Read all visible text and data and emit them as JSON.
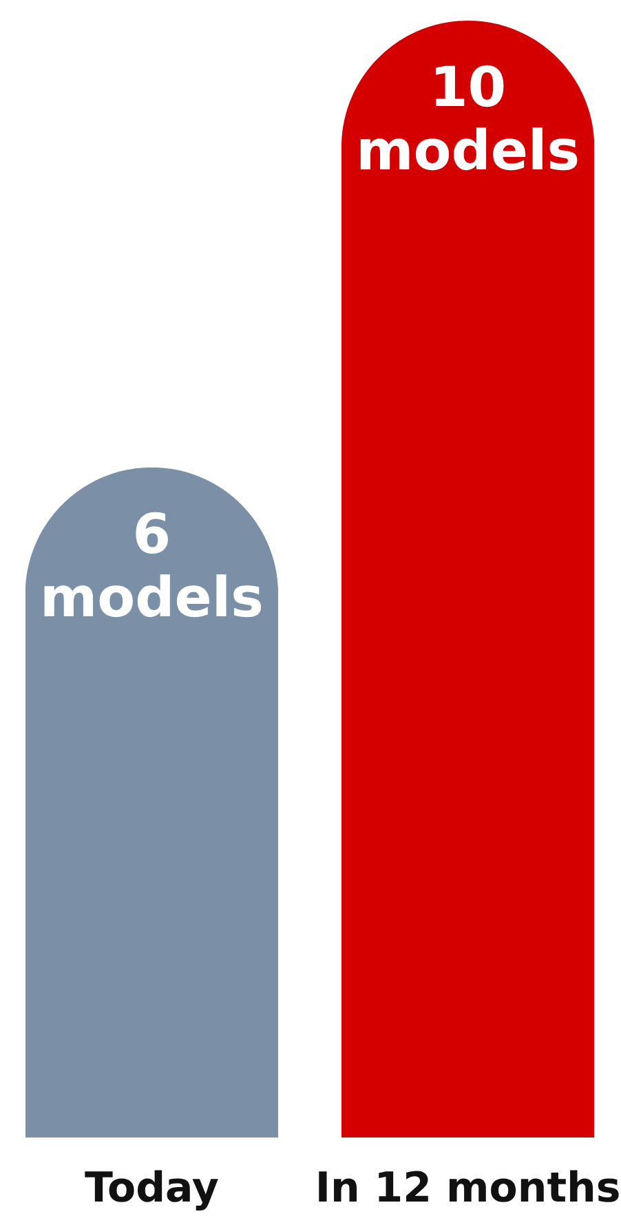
{
  "chart_data": {
    "type": "bar",
    "categories": [
      "Today",
      "In 12 months"
    ],
    "values": [
      6,
      10
    ],
    "colors": [
      "#7b8fa6",
      "#d40000"
    ],
    "value_labels": [
      "6 models",
      "10 models"
    ],
    "grid": false,
    "legend": false
  }
}
